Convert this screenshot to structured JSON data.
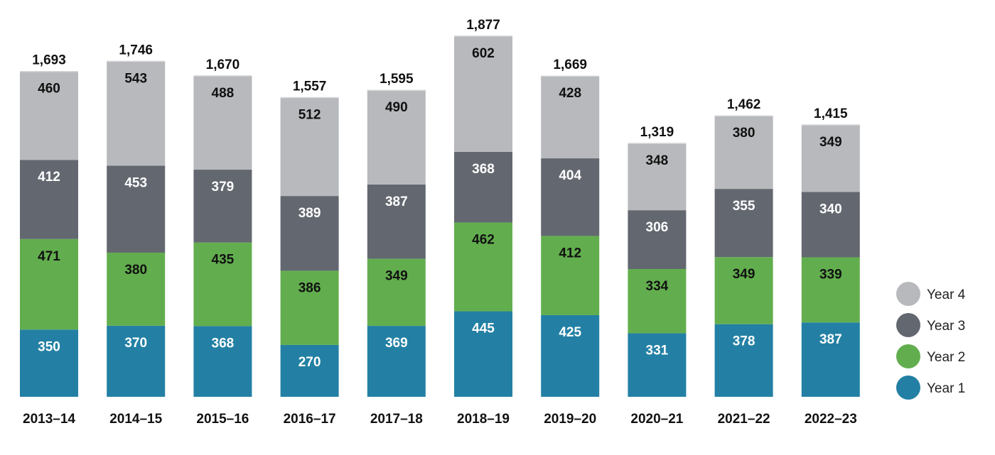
{
  "chart_data": {
    "type": "bar",
    "stacked": true,
    "title": "",
    "xlabel": "",
    "ylabel": "",
    "categories": [
      "2013–14",
      "2014–15",
      "2015–16",
      "2016–17",
      "2017–18",
      "2018–19",
      "2019–20",
      "2020–21",
      "2021–22",
      "2022–23"
    ],
    "series": [
      {
        "name": "Year 1",
        "color": "#2380a4",
        "label_color": "#ffffff",
        "values": [
          350,
          370,
          368,
          270,
          369,
          445,
          425,
          331,
          378,
          387
        ]
      },
      {
        "name": "Year 2",
        "color": "#62ae4e",
        "label_color": "#111111",
        "values": [
          471,
          380,
          435,
          386,
          349,
          462,
          412,
          334,
          349,
          339
        ]
      },
      {
        "name": "Year 3",
        "color": "#636870",
        "label_color": "#ffffff",
        "values": [
          412,
          453,
          379,
          389,
          387,
          368,
          404,
          306,
          355,
          340
        ]
      },
      {
        "name": "Year 4",
        "color": "#b7b9bc",
        "label_color": "#111111",
        "values": [
          460,
          543,
          488,
          512,
          490,
          602,
          428,
          348,
          380,
          349
        ]
      }
    ],
    "totals": [
      "1,693",
      "1,746",
      "1,670",
      "1,557",
      "1,595",
      "1,877",
      "1,669",
      "1,319",
      "1,462",
      "1,415"
    ],
    "value_labels": [
      [
        "350",
        "370",
        "368",
        "270",
        "369",
        "445",
        "425",
        "331",
        "378",
        "387"
      ],
      [
        "471",
        "380",
        "435",
        "386",
        "349",
        "462",
        "412",
        "334",
        "349",
        "339"
      ],
      [
        "412",
        "453",
        "379",
        "389",
        "387",
        "368",
        "404",
        "306",
        "355",
        "340"
      ],
      [
        "460",
        "543",
        "488",
        "512",
        "490",
        "602",
        "428",
        "348",
        "380",
        "349"
      ]
    ],
    "legend": {
      "placement": "right",
      "order": [
        "Year 4",
        "Year 3",
        "Year 2",
        "Year 1"
      ]
    },
    "grid": false,
    "axes_visible": false
  }
}
